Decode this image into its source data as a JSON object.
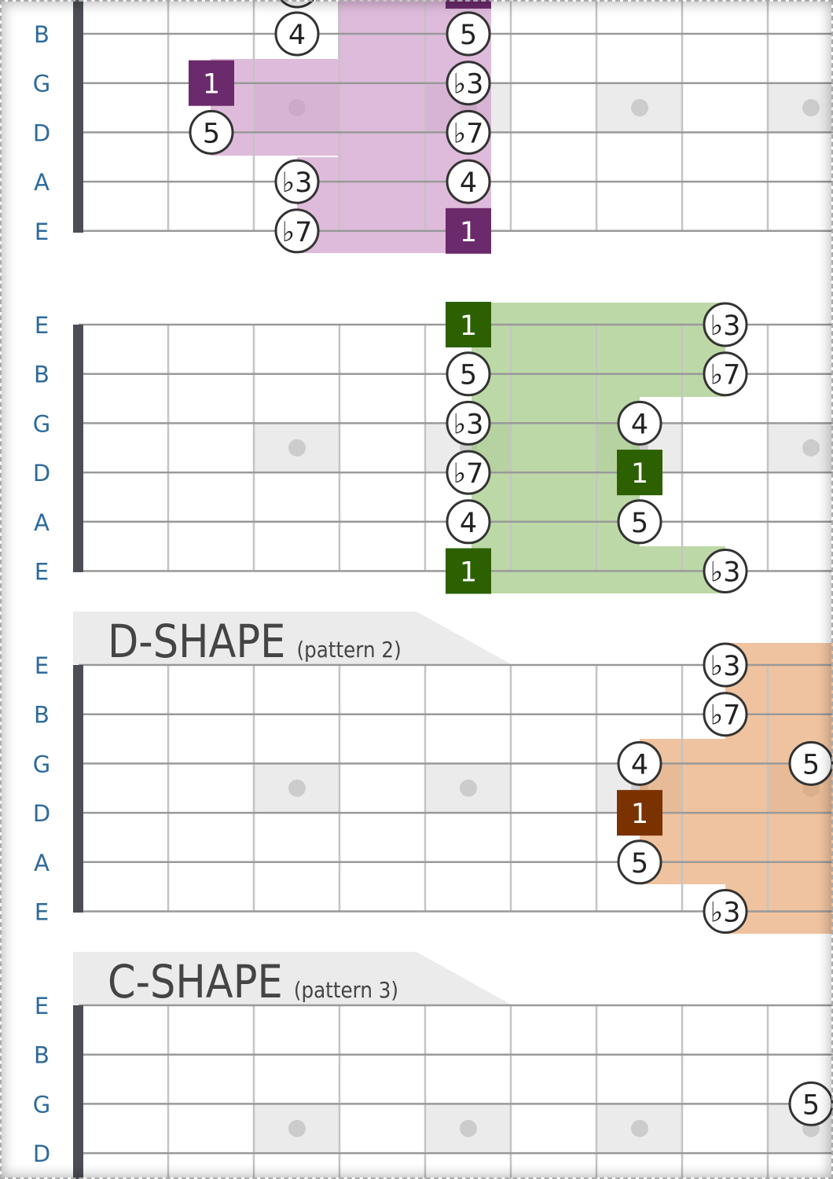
{
  "sections": [
    {
      "color": "#6b2a6b",
      "strings": [
        {
          "label": "B",
          "notes": [
            {
              "fret": 3,
              "label": "4"
            },
            {
              "fret": 5,
              "label": "5"
            }
          ]
        },
        {
          "label": "G",
          "notes": [
            {
              "fret": 2,
              "label": "1",
              "root": true
            },
            {
              "fret": 5,
              "label": "♭3"
            }
          ]
        },
        {
          "label": "D",
          "notes": [
            {
              "fret": 2,
              "label": "5"
            },
            {
              "fret": 5,
              "label": "♭7"
            }
          ]
        },
        {
          "label": "A",
          "notes": [
            {
              "fret": 3,
              "label": "♭3"
            },
            {
              "fret": 5,
              "label": "4"
            }
          ]
        },
        {
          "label": "E",
          "notes": [
            {
              "fret": 3,
              "label": "♭7"
            },
            {
              "fret": 5,
              "label": "1",
              "root": true
            }
          ]
        }
      ]
    },
    {
      "color": "#2d6000",
      "strings": [
        {
          "label": "E",
          "notes": [
            {
              "fret": 5,
              "label": "1",
              "root": true
            },
            {
              "fret": 8,
              "label": "♭3"
            }
          ]
        },
        {
          "label": "B",
          "notes": [
            {
              "fret": 5,
              "label": "5"
            },
            {
              "fret": 8,
              "label": "♭7"
            }
          ]
        },
        {
          "label": "G",
          "notes": [
            {
              "fret": 5,
              "label": "♭3"
            },
            {
              "fret": 7,
              "label": "4"
            }
          ]
        },
        {
          "label": "D",
          "notes": [
            {
              "fret": 5,
              "label": "♭7"
            },
            {
              "fret": 7,
              "label": "1",
              "root": true
            }
          ]
        },
        {
          "label": "A",
          "notes": [
            {
              "fret": 5,
              "label": "4"
            },
            {
              "fret": 7,
              "label": "5"
            }
          ]
        },
        {
          "label": "E",
          "notes": [
            {
              "fret": 5,
              "label": "1",
              "root": true
            },
            {
              "fret": 8,
              "label": "♭3"
            }
          ]
        }
      ]
    },
    {
      "title": "D-SHAPE",
      "subtitle": "(pattern 2)",
      "color": "#7a3300",
      "strings": [
        {
          "label": "E",
          "notes": [
            {
              "fret": 8,
              "label": "♭3"
            }
          ]
        },
        {
          "label": "B",
          "notes": [
            {
              "fret": 8,
              "label": "♭7"
            }
          ]
        },
        {
          "label": "G",
          "notes": [
            {
              "fret": 7,
              "label": "4"
            },
            {
              "fret": 9,
              "label": "5"
            }
          ]
        },
        {
          "label": "D",
          "notes": [
            {
              "fret": 7,
              "label": "1",
              "root": true
            }
          ]
        },
        {
          "label": "A",
          "notes": [
            {
              "fret": 7,
              "label": "5"
            }
          ]
        },
        {
          "label": "E",
          "notes": [
            {
              "fret": 8,
              "label": "♭3"
            }
          ]
        }
      ]
    },
    {
      "title": "C-SHAPE",
      "subtitle": "(pattern 3)",
      "color": "#2a6a9a",
      "strings": [
        {
          "label": "E",
          "notes": []
        },
        {
          "label": "B",
          "notes": []
        },
        {
          "label": "G",
          "notes": [
            {
              "fret": 9,
              "label": "5"
            }
          ]
        },
        {
          "label": "D",
          "notes": []
        }
      ]
    }
  ]
}
